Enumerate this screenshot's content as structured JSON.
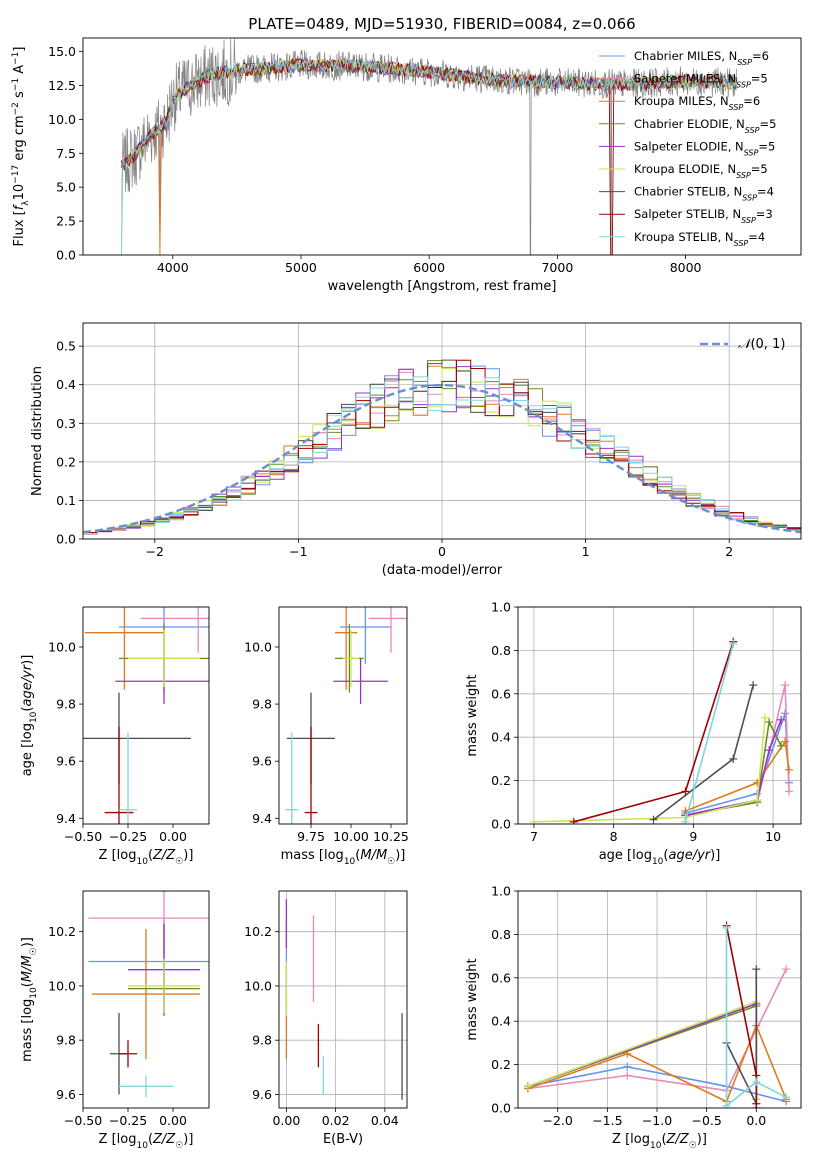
{
  "figure": {
    "title": "PLATE=0489, MJD=51930, FIBERID=0084, z=0.066"
  },
  "colors": {
    "Chabrier MILES": "#6495ED",
    "Salpeter MILES": "#E68AB8",
    "Kroupa MILES": "#E07A1F",
    "Chabrier ELODIE": "#6B8E23",
    "Salpeter ELODIE": "#9932CC",
    "Kroupa ELODIE": "#C8E65A",
    "Chabrier STELIB": "#4D4D4D",
    "Salpeter STELIB": "#A00000",
    "Kroupa STELIB": "#7FD6DC"
  },
  "chart_data": [
    {
      "id": "spectrum",
      "type": "line",
      "xlabel": "wavelength [Angstrom, rest frame]",
      "ylabel": "Flux [f_λ 10^-17 erg cm^-2 s^-1 A^-1]",
      "xlim": [
        3300,
        8900
      ],
      "ylim": [
        0,
        16
      ],
      "xticks": [
        "4000",
        "5000",
        "6000",
        "7000",
        "8000"
      ],
      "yticks": [
        "0.0",
        "2.5",
        "5.0",
        "7.5",
        "10.0",
        "12.5",
        "15.0"
      ],
      "legend_position": "right",
      "grid": false,
      "data_color": "#808080",
      "continuum": [
        [
          3600,
          6.5
        ],
        [
          3700,
          7.3
        ],
        [
          3800,
          8.6
        ],
        [
          3950,
          9.8
        ],
        [
          4000,
          11.5
        ],
        [
          4100,
          12.3
        ],
        [
          4300,
          13.3
        ],
        [
          4600,
          13.7
        ],
        [
          5000,
          14.0
        ],
        [
          5500,
          13.9
        ],
        [
          6000,
          13.5
        ],
        [
          6500,
          12.9
        ],
        [
          7000,
          12.7
        ],
        [
          7500,
          12.6
        ],
        [
          8000,
          12.8
        ],
        [
          8400,
          12.7
        ]
      ],
      "series": [
        {
          "name": "Chabrier MILES, N_SSP=6",
          "label_main": "Chabrier MILES, N",
          "label_sub": "SSP",
          "label_tail": "=6"
        },
        {
          "name": "Salpeter MILES, N_SSP=5",
          "label_main": "Salpeter MILES, N",
          "label_sub": "SSP",
          "label_tail": "=5"
        },
        {
          "name": "Kroupa MILES, N_SSP=6",
          "label_main": "Kroupa MILES, N",
          "label_sub": "SSP",
          "label_tail": "=6"
        },
        {
          "name": "Chabrier ELODIE, N_SSP=5",
          "label_main": "Chabrier ELODIE, N",
          "label_sub": "SSP",
          "label_tail": "=5"
        },
        {
          "name": "Salpeter ELODIE, N_SSP=5",
          "label_main": "Salpeter ELODIE, N",
          "label_sub": "SSP",
          "label_tail": "=5"
        },
        {
          "name": "Kroupa ELODIE, N_SSP=5",
          "label_main": "Kroupa ELODIE, N",
          "label_sub": "SSP",
          "label_tail": "=5"
        },
        {
          "name": "Chabrier STELIB, N_SSP=4",
          "label_main": "Chabrier STELIB, N",
          "label_sub": "SSP",
          "label_tail": "=4"
        },
        {
          "name": "Salpeter STELIB, N_SSP=3",
          "label_main": "Salpeter STELIB, N",
          "label_sub": "SSP",
          "label_tail": "=3"
        },
        {
          "name": "Kroupa STELIB, N_SSP=4",
          "label_main": "Kroupa STELIB, N",
          "label_sub": "SSP",
          "label_tail": "=4"
        }
      ],
      "drops": [
        3600,
        3900,
        6790,
        7420
      ]
    },
    {
      "id": "residuals",
      "type": "bar",
      "xlabel": "(data-model)/error",
      "ylabel": "Normed distribution",
      "xlim": [
        -2.5,
        2.5
      ],
      "ylim": [
        0,
        0.56
      ],
      "xticks": [
        "−2",
        "−1",
        "0",
        "1",
        "2"
      ],
      "yticks": [
        "0.0",
        "0.1",
        "0.2",
        "0.3",
        "0.4",
        "0.5"
      ],
      "grid": true,
      "bin_width": 0.1,
      "reference": {
        "name": "N(0,1)",
        "mean": 0,
        "sigma": 1,
        "color": "#6A8FD0"
      }
    },
    {
      "id": "age-vs-Z",
      "type": "scatter",
      "xlabel": "Z [log10(Z/Z☉)]",
      "ylabel": "age [log10(age/yr)]",
      "xlim": [
        -0.5,
        0.2
      ],
      "ylim": [
        9.38,
        10.14
      ],
      "xticks": [
        "−0.50",
        "−0.25",
        "0.00"
      ],
      "yticks": [
        "9.4",
        "9.6",
        "9.8",
        "10.0"
      ],
      "grid": false,
      "points": [
        {
          "series": "Chabrier MILES",
          "x": -0.05,
          "xerr": 0.25,
          "y": 10.07,
          "yerr": 0.13
        },
        {
          "series": "Salpeter MILES",
          "x": 0.14,
          "xerr": 0.32,
          "y": 10.1,
          "yerr": 0.12
        },
        {
          "series": "Kroupa MILES",
          "x": -0.27,
          "xerr": 0.22,
          "y": 10.05,
          "yerr": 0.2
        },
        {
          "series": "Chabrier ELODIE",
          "x": -0.05,
          "xerr": 0.25,
          "y": 9.96,
          "yerr": 0.12
        },
        {
          "series": "Salpeter ELODIE",
          "x": -0.05,
          "xerr": 0.27,
          "y": 9.88,
          "yerr": 0.08
        },
        {
          "series": "Kroupa ELODIE",
          "x": -0.05,
          "xerr": 0.2,
          "y": 9.96,
          "yerr": 0.1
        },
        {
          "series": "Chabrier STELIB",
          "x": -0.3,
          "xerr": 0.4,
          "y": 9.68,
          "yerr": 0.16
        },
        {
          "series": "Salpeter STELIB",
          "x": -0.3,
          "xerr": 0.08,
          "y": 9.42,
          "yerr": 0.3
        },
        {
          "series": "Kroupa STELIB",
          "x": -0.25,
          "xerr": 0.05,
          "y": 9.43,
          "yerr": 0.27
        }
      ]
    },
    {
      "id": "age-vs-mass",
      "type": "scatter",
      "xlabel": "mass [log10(M/M☉)]",
      "ylabel": "",
      "xlim": [
        9.55,
        10.35
      ],
      "ylim": [
        9.38,
        10.14
      ],
      "xticks": [
        "9.75",
        "10.00",
        "10.25"
      ],
      "yticks": [
        "9.4",
        "9.6",
        "9.8",
        "10.0"
      ],
      "grid": false,
      "points": [
        {
          "series": "Chabrier MILES",
          "x": 10.09,
          "xerr": 0.16,
          "y": 10.07,
          "yerr": 0.13
        },
        {
          "series": "Salpeter MILES",
          "x": 10.25,
          "xerr": 0.14,
          "y": 10.1,
          "yerr": 0.12
        },
        {
          "series": "Kroupa MILES",
          "x": 9.97,
          "xerr": 0.07,
          "y": 10.05,
          "yerr": 0.2
        },
        {
          "series": "Chabrier ELODIE",
          "x": 9.99,
          "xerr": 0.09,
          "y": 9.96,
          "yerr": 0.12
        },
        {
          "series": "Salpeter ELODIE",
          "x": 10.06,
          "xerr": 0.17,
          "y": 9.88,
          "yerr": 0.08
        },
        {
          "series": "Kroupa ELODIE",
          "x": 10.0,
          "xerr": 0.05,
          "y": 9.96,
          "yerr": 0.1
        },
        {
          "series": "Chabrier STELIB",
          "x": 9.75,
          "xerr": 0.15,
          "y": 9.68,
          "yerr": 0.16
        },
        {
          "series": "Salpeter STELIB",
          "x": 9.75,
          "xerr": 0.04,
          "y": 9.42,
          "yerr": 0.3
        },
        {
          "series": "Kroupa STELIB",
          "x": 9.63,
          "xerr": 0.04,
          "y": 9.43,
          "yerr": 0.27
        }
      ]
    },
    {
      "id": "weight-vs-age",
      "type": "line",
      "xlabel": "age [log10(age/yr)]",
      "ylabel": "mass weight",
      "xlim": [
        6.8,
        10.35
      ],
      "ylim": [
        0,
        1.0
      ],
      "xticks": [
        "7",
        "8",
        "9",
        "10"
      ],
      "yticks": [
        "0.0",
        "0.2",
        "0.4",
        "0.6",
        "0.8",
        "1.0"
      ],
      "grid": true,
      "series": [
        {
          "series": "Chabrier MILES",
          "x": [
            8.9,
            9.8,
            10.15,
            10.2
          ],
          "y": [
            0.05,
            0.14,
            0.51,
            0.19
          ]
        },
        {
          "series": "Salpeter MILES",
          "x": [
            8.9,
            9.8,
            10.15,
            10.2
          ],
          "y": [
            0.04,
            0.1,
            0.64,
            0.15
          ]
        },
        {
          "series": "Kroupa MILES",
          "x": [
            8.9,
            9.8,
            10.15,
            10.2
          ],
          "y": [
            0.06,
            0.19,
            0.38,
            0.25
          ]
        },
        {
          "series": "Chabrier ELODIE",
          "x": [
            8.9,
            9.8,
            9.95,
            10.1
          ],
          "y": [
            0.04,
            0.1,
            0.47,
            0.36
          ]
        },
        {
          "series": "Salpeter ELODIE",
          "x": [
            8.9,
            9.8,
            9.95,
            10.1
          ],
          "y": [
            0.04,
            0.11,
            0.34,
            0.48
          ]
        },
        {
          "series": "Kroupa ELODIE",
          "x": [
            7.0,
            8.9,
            9.8,
            9.9
          ],
          "y": [
            0.01,
            0.03,
            0.11,
            0.49
          ]
        },
        {
          "series": "Chabrier STELIB",
          "x": [
            8.5,
            9.5,
            9.75
          ],
          "y": [
            0.02,
            0.3,
            0.64
          ]
        },
        {
          "series": "Salpeter STELIB",
          "x": [
            7.5,
            8.9,
            9.5
          ],
          "y": [
            0.01,
            0.15,
            0.84
          ]
        },
        {
          "series": "Kroupa STELIB",
          "x": [
            8.9,
            9.5
          ],
          "y": [
            0.01,
            0.83
          ]
        }
      ]
    },
    {
      "id": "mass-vs-Z",
      "type": "scatter",
      "xlabel": "Z [log10(Z/Z☉)]",
      "ylabel": "mass [log10(M/M☉)]",
      "xlim": [
        -0.5,
        0.2
      ],
      "ylim": [
        9.55,
        10.35
      ],
      "xticks": [
        "−0.50",
        "−0.25",
        "0.00"
      ],
      "yticks": [
        "9.6",
        "9.8",
        "10.0",
        "10.2"
      ],
      "grid": false,
      "points": [
        {
          "series": "Chabrier MILES",
          "x": -0.05,
          "xerr": 0.42,
          "y": 10.09,
          "yerr": 0.16
        },
        {
          "series": "Salpeter MILES",
          "x": -0.05,
          "xerr": 0.42,
          "y": 10.25,
          "yerr": 0.14
        },
        {
          "series": "Kroupa MILES",
          "x": -0.15,
          "xerr": 0.3,
          "y": 9.97,
          "yerr": 0.24
        },
        {
          "series": "Chabrier ELODIE",
          "x": -0.05,
          "xerr": 0.2,
          "y": 9.99,
          "yerr": 0.09
        },
        {
          "series": "Salpeter ELODIE",
          "x": -0.05,
          "xerr": 0.2,
          "y": 10.06,
          "yerr": 0.17
        },
        {
          "series": "Kroupa ELODIE",
          "x": -0.05,
          "xerr": 0.2,
          "y": 10.0,
          "yerr": 0.1
        },
        {
          "series": "Chabrier STELIB",
          "x": -0.3,
          "xerr": 0.05,
          "y": 9.75,
          "yerr": 0.15
        },
        {
          "series": "Salpeter STELIB",
          "x": -0.25,
          "xerr": 0.05,
          "y": 9.75,
          "yerr": 0.05
        },
        {
          "series": "Kroupa STELIB",
          "x": -0.15,
          "xerr": 0.15,
          "y": 9.63,
          "yerr": 0.04
        }
      ]
    },
    {
      "id": "mass-vs-ebv",
      "type": "scatter",
      "xlabel": "E(B-V)",
      "ylabel": "",
      "xlim": [
        -0.003,
        0.049
      ],
      "ylim": [
        9.55,
        10.35
      ],
      "xticks": [
        "0.00",
        "0.02",
        "0.04"
      ],
      "yticks": [
        "9.6",
        "9.8",
        "10.0",
        "10.2"
      ],
      "grid": true,
      "points": [
        {
          "series": "Chabrier MILES",
          "x": 0.0,
          "y": 10.09,
          "yerr": 0.16
        },
        {
          "series": "Salpeter MILES",
          "x": 0.011,
          "y": 10.1,
          "yerr": 0.16
        },
        {
          "series": "Kroupa MILES",
          "x": 0.0,
          "y": 9.85,
          "yerr": 0.12
        },
        {
          "series": "Chabrier ELODIE",
          "x": 0.0,
          "y": 9.98,
          "yerr": 0.09
        },
        {
          "series": "Salpeter ELODIE",
          "x": 0.0,
          "y": 10.23,
          "yerr": 0.09
        },
        {
          "series": "Kroupa ELODIE",
          "x": 0.0,
          "y": 9.99,
          "yerr": 0.1
        },
        {
          "series": "Chabrier STELIB",
          "x": 0.047,
          "y": 9.74,
          "yerr": 0.16
        },
        {
          "series": "Salpeter STELIB",
          "x": 0.013,
          "y": 9.78,
          "yerr": 0.08
        },
        {
          "series": "Kroupa STELIB",
          "x": 0.015,
          "y": 9.67,
          "yerr": 0.07
        }
      ]
    },
    {
      "id": "weight-vs-Z",
      "type": "line",
      "xlabel": "Z [log10(Z/Z☉)]",
      "ylabel": "mass weight",
      "xlim": [
        -2.4,
        0.45
      ],
      "ylim": [
        0,
        1.0
      ],
      "xticks": [
        "−2.0",
        "−1.5",
        "−1.0",
        "−0.5",
        "0.0"
      ],
      "yticks": [
        "0.0",
        "0.2",
        "0.4",
        "0.6",
        "0.8",
        "1.0"
      ],
      "grid": true,
      "series": [
        {
          "series": "Chabrier MILES",
          "x": [
            -2.3,
            -1.3,
            -0.3,
            0.3
          ],
          "y": [
            0.1,
            0.19,
            0.1,
            0.03
          ]
        },
        {
          "series": "Salpeter MILES",
          "x": [
            -2.3,
            -1.3,
            -0.3,
            0.3
          ],
          "y": [
            0.09,
            0.15,
            0.08,
            0.64
          ]
        },
        {
          "series": "Kroupa MILES",
          "x": [
            -2.3,
            -1.3,
            -0.3,
            0.0,
            0.3
          ],
          "y": [
            0.09,
            0.25,
            0.03,
            0.38,
            0.04
          ]
        },
        {
          "series": "Chabrier ELODIE",
          "x": [
            -2.3,
            0.0,
            0.0
          ],
          "y": [
            0.1,
            0.47,
            0.04
          ]
        },
        {
          "series": "Salpeter ELODIE",
          "x": [
            -2.3,
            0.0,
            0.0
          ],
          "y": [
            0.1,
            0.48,
            0.02
          ]
        },
        {
          "series": "Kroupa ELODIE",
          "x": [
            -2.3,
            0.0,
            0.0
          ],
          "y": [
            0.1,
            0.49,
            0.04
          ]
        },
        {
          "series": "Chabrier STELIB",
          "x": [
            -0.3,
            0.0,
            0.0
          ],
          "y": [
            0.3,
            0.02,
            0.64
          ]
        },
        {
          "series": "Salpeter STELIB",
          "x": [
            -0.3,
            0.0,
            0.0
          ],
          "y": [
            0.84,
            0.15,
            0.0
          ]
        },
        {
          "series": "Kroupa STELIB",
          "x": [
            -0.3,
            -0.3,
            0.0,
            0.3
          ],
          "y": [
            0.83,
            0.01,
            0.12,
            0.05
          ]
        }
      ]
    }
  ]
}
